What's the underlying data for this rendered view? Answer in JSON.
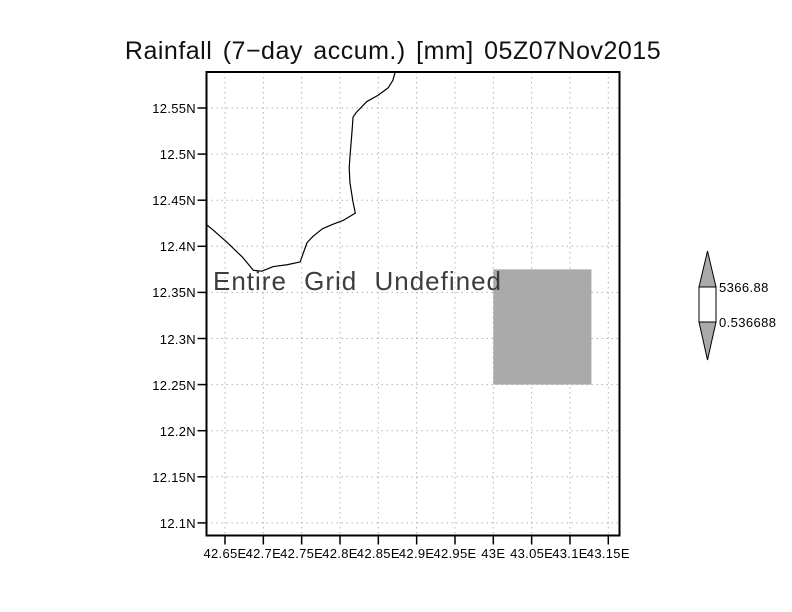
{
  "colors": {
    "background": "#ffffff",
    "grid": "#b3b3b3",
    "frame": "#000000",
    "coastline": "#000000",
    "shade_gray": "#aaaaaa",
    "colorbar_white": "#ffffff",
    "text": "#000000"
  },
  "chart_data": {
    "type": "heatmap",
    "subtype": "geographic-lat-lon-plot",
    "title": "Rainfall (7−day accum.) [mm] 05Z07Nov2015",
    "annotation": "Entire Grid Undefined",
    "xlabel": "",
    "ylabel": "",
    "x_ticks": [
      "42.65E",
      "42.7E",
      "42.75E",
      "42.8E",
      "42.85E",
      "42.9E",
      "42.95E",
      "43E",
      "43.05E",
      "43.1E",
      "43.15E"
    ],
    "y_ticks": [
      "12.55N",
      "12.5N",
      "12.45N",
      "12.4N",
      "12.35N",
      "12.3N",
      "12.25N",
      "12.2N",
      "12.15N",
      "12.1N"
    ],
    "xlim": [
      42.625,
      43.165
    ],
    "ylim": [
      12.085,
      12.59
    ],
    "grid": true,
    "grid_style": "dotted",
    "colorbar": {
      "labels": [
        "5366.88",
        "0.536688"
      ],
      "arrow_fill": "#aaaaaa",
      "mid_fill": "#ffffff"
    },
    "shaded_cell": {
      "lon_min": 43.0,
      "lon_max": 43.128,
      "lat_min": 12.25,
      "lat_max": 12.375,
      "color": "#aaaaaa"
    },
    "coastline_lonlat": [
      [
        42.625,
        12.424
      ],
      [
        42.634,
        12.418
      ],
      [
        42.653,
        12.404
      ],
      [
        42.673,
        12.388
      ],
      [
        42.687,
        12.374
      ],
      [
        42.698,
        12.373
      ],
      [
        42.713,
        12.378
      ],
      [
        42.731,
        12.38
      ],
      [
        42.748,
        12.383
      ],
      [
        42.757,
        12.404
      ],
      [
        42.765,
        12.411
      ],
      [
        42.777,
        12.419
      ],
      [
        42.791,
        12.424
      ],
      [
        42.804,
        12.428
      ],
      [
        42.82,
        12.436
      ],
      [
        42.817,
        12.448
      ],
      [
        42.813,
        12.469
      ],
      [
        42.812,
        12.485
      ],
      [
        42.813,
        12.497
      ],
      [
        42.816,
        12.528
      ],
      [
        42.817,
        12.54
      ],
      [
        42.821,
        12.545
      ],
      [
        42.835,
        12.557
      ],
      [
        42.85,
        12.564
      ],
      [
        42.863,
        12.572
      ],
      [
        42.869,
        12.58
      ],
      [
        42.873,
        12.592
      ]
    ]
  }
}
